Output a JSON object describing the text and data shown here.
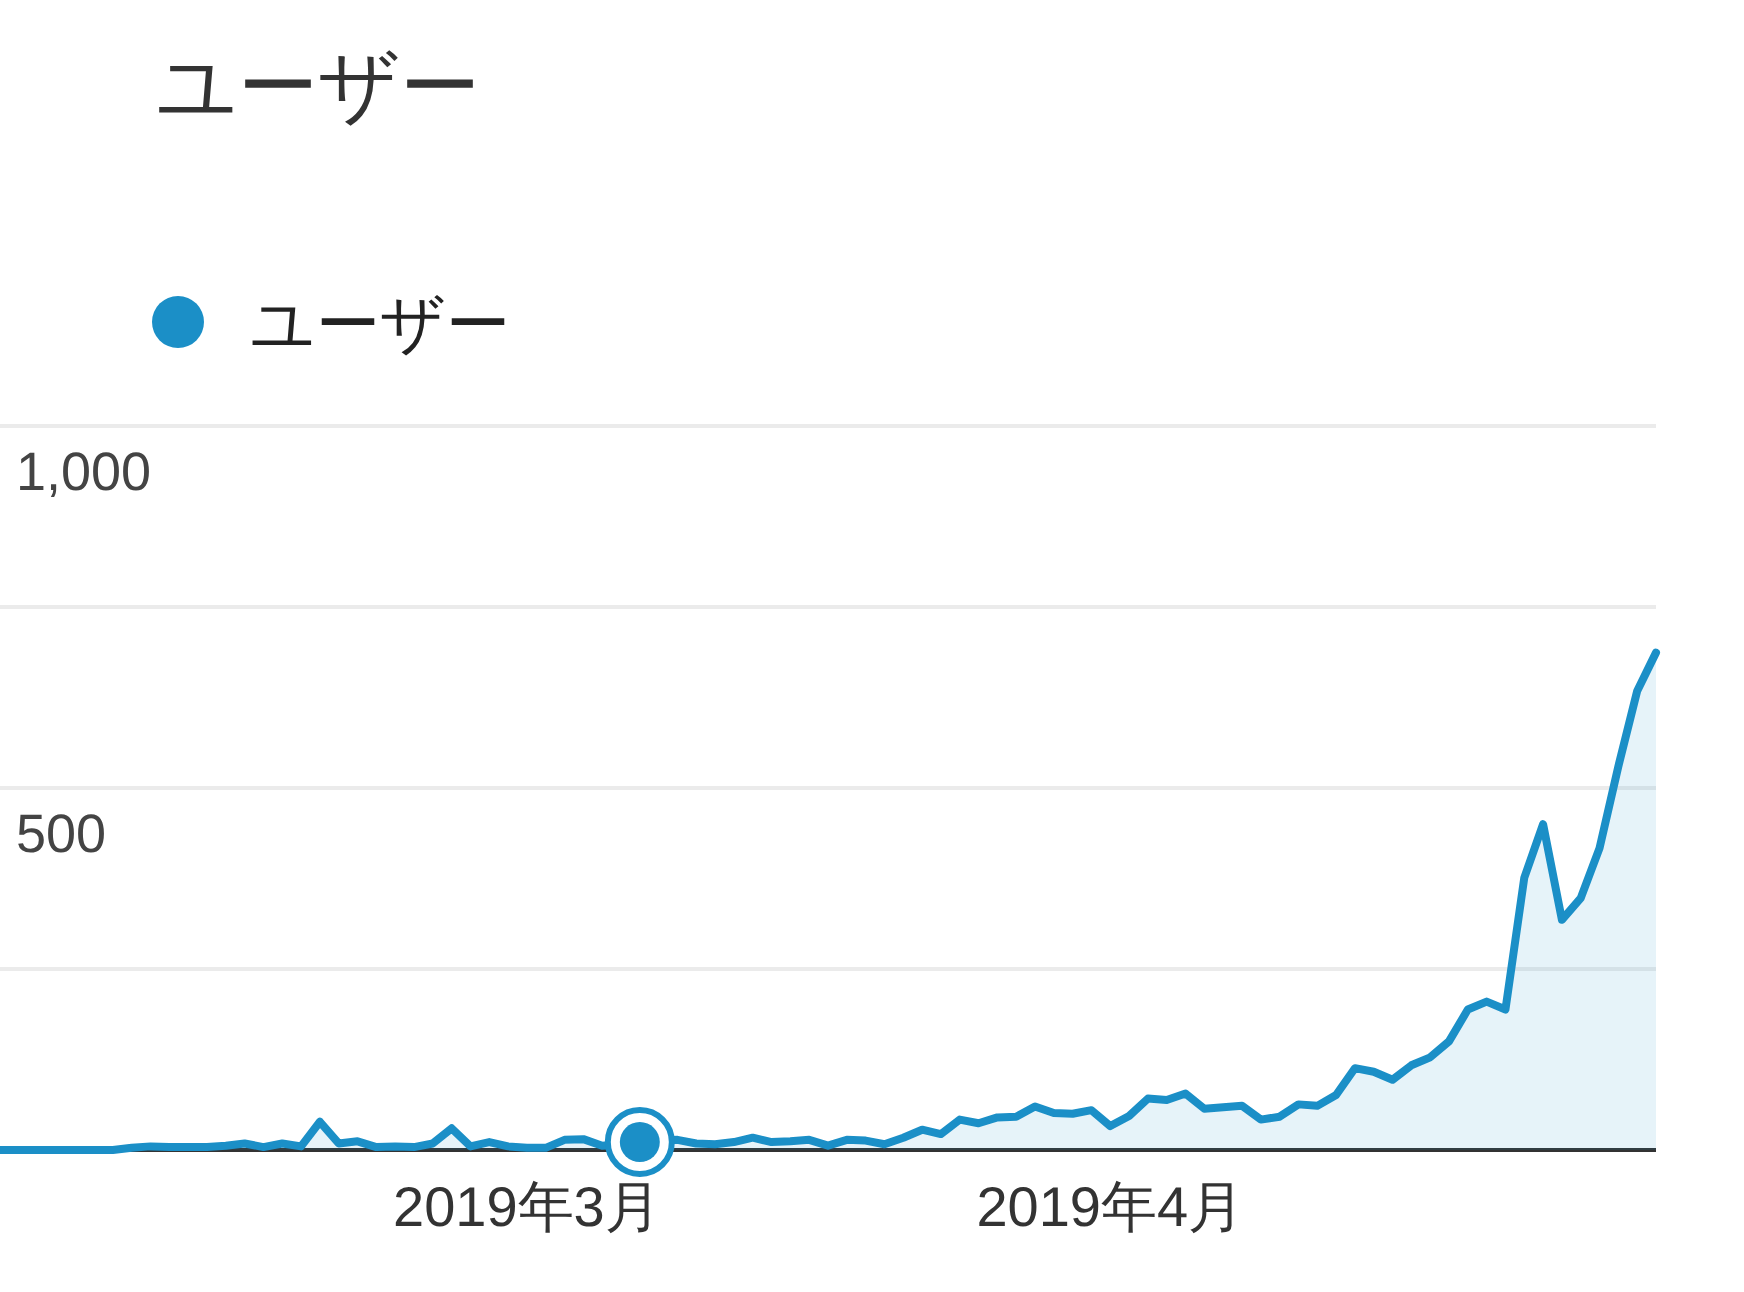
{
  "chart_data": {
    "type": "area",
    "title": "ユーザー",
    "x": [
      "2019-02-01",
      "2019-02-02",
      "2019-02-03",
      "2019-02-04",
      "2019-02-05",
      "2019-02-06",
      "2019-02-07",
      "2019-02-08",
      "2019-02-09",
      "2019-02-10",
      "2019-02-11",
      "2019-02-12",
      "2019-02-13",
      "2019-02-14",
      "2019-02-15",
      "2019-02-16",
      "2019-02-17",
      "2019-02-18",
      "2019-02-19",
      "2019-02-20",
      "2019-02-21",
      "2019-02-22",
      "2019-02-23",
      "2019-02-24",
      "2019-02-25",
      "2019-02-26",
      "2019-02-27",
      "2019-02-28",
      "2019-03-01",
      "2019-03-02",
      "2019-03-03",
      "2019-03-04",
      "2019-03-05",
      "2019-03-06",
      "2019-03-07",
      "2019-03-08",
      "2019-03-09",
      "2019-03-10",
      "2019-03-11",
      "2019-03-12",
      "2019-03-13",
      "2019-03-14",
      "2019-03-15",
      "2019-03-16",
      "2019-03-17",
      "2019-03-18",
      "2019-03-19",
      "2019-03-20",
      "2019-03-21",
      "2019-03-22",
      "2019-03-23",
      "2019-03-24",
      "2019-03-25",
      "2019-03-26",
      "2019-03-27",
      "2019-03-28",
      "2019-03-29",
      "2019-03-30",
      "2019-03-31",
      "2019-04-01",
      "2019-04-02",
      "2019-04-03",
      "2019-04-04",
      "2019-04-05",
      "2019-04-06",
      "2019-04-07",
      "2019-04-08",
      "2019-04-09",
      "2019-04-10",
      "2019-04-11",
      "2019-04-12",
      "2019-04-13",
      "2019-04-14",
      "2019-04-15",
      "2019-04-16",
      "2019-04-17",
      "2019-04-18",
      "2019-04-19",
      "2019-04-20",
      "2019-04-21",
      "2019-04-22",
      "2019-04-23",
      "2019-04-24",
      "2019-04-25",
      "2019-04-26",
      "2019-04-27",
      "2019-04-28",
      "2019-04-29",
      "2019-04-30"
    ],
    "xlim": [
      "2019-02-01",
      "2019-04-30"
    ],
    "xticks": [
      {
        "value": "2019-03-01",
        "label": "2019年3月"
      },
      {
        "value": "2019-04-01",
        "label": "2019年4月"
      }
    ],
    "ylim": [
      0,
      1000
    ],
    "yticks": [
      {
        "value": 250,
        "label": null
      },
      500,
      {
        "value": 750,
        "label": null
      },
      {
        "value": 1000,
        "label": "1,000"
      }
    ],
    "grid": "y",
    "legend": "top left",
    "series": [
      {
        "name": "ユーザー",
        "color": "#1b8fc7",
        "values": [
          0,
          0,
          0,
          0,
          0,
          0,
          0,
          3,
          5,
          4,
          4,
          4,
          6,
          9,
          4,
          9,
          5,
          39,
          9,
          12,
          4,
          5,
          4,
          9,
          30,
          5,
          11,
          5,
          3,
          3,
          14,
          15,
          6,
          8,
          11,
          13,
          14,
          9,
          8,
          11,
          17,
          11,
          12,
          14,
          6,
          14,
          13,
          8,
          17,
          28,
          22,
          42,
          37,
          45,
          46,
          60,
          51,
          50,
          55,
          33,
          47,
          71,
          69,
          78,
          57,
          59,
          61,
          42,
          46,
          63,
          61,
          76,
          113,
          108,
          97,
          117,
          128,
          150,
          194,
          205,
          194,
          376,
          450,
          318,
          348,
          417,
          530,
          634,
          687
        ]
      },
      {
        "type": "scatter",
        "color": "#1b8fc7",
        "marker": "circle",
        "x": [
          "2019-03-07"
        ],
        "values": [
          11
        ]
      }
    ]
  }
}
